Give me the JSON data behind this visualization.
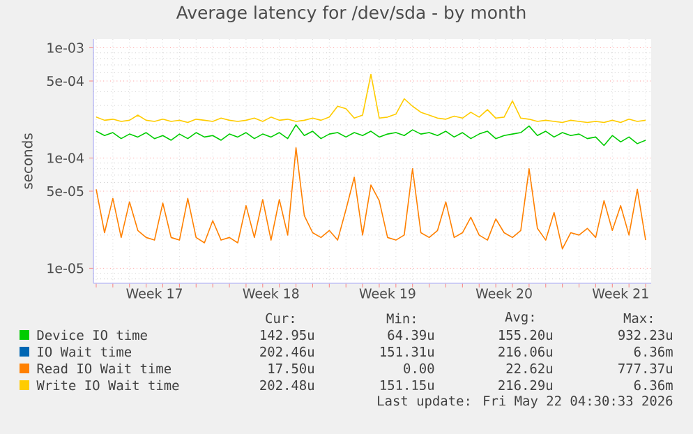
{
  "chart_data": {
    "type": "line",
    "title": "Average latency for /dev/sda - by month",
    "ylabel": "seconds",
    "log": "y",
    "grid": true,
    "legend": "bottom",
    "marker": "none",
    "line_style": "solid",
    "xlim": [
      "2026-04-19T20:00",
      "2026-05-23T08:00"
    ],
    "xticks": [
      {
        "value": "2026-04-20",
        "label": null
      },
      {
        "value": "2026-04-21",
        "label": null
      },
      {
        "value": "2026-04-22",
        "label": null
      },
      {
        "value": "2026-04-23",
        "label": null
      },
      {
        "value": "2026-04-24",
        "label": null
      },
      {
        "value": "2026-04-25",
        "label": null
      },
      {
        "value": "2026-04-26",
        "label": null
      },
      {
        "value": "2026-04-27",
        "label": null
      },
      {
        "value": "2026-04-28",
        "label": null
      },
      {
        "value": "2026-04-29",
        "label": null
      },
      {
        "value": "2026-04-30",
        "label": null
      },
      {
        "value": "2026-05-01",
        "label": null
      },
      {
        "value": "2026-05-02",
        "label": null
      },
      {
        "value": "2026-05-03",
        "label": null
      },
      {
        "value": "2026-05-04",
        "label": null
      },
      {
        "value": "2026-05-05",
        "label": null
      },
      {
        "value": "2026-05-06",
        "label": null
      },
      {
        "value": "2026-05-07",
        "label": null
      },
      {
        "value": "2026-05-08",
        "label": null
      },
      {
        "value": "2026-05-09",
        "label": null
      },
      {
        "value": "2026-05-10",
        "label": null
      },
      {
        "value": "2026-05-11",
        "label": null
      },
      {
        "value": "2026-05-12",
        "label": null
      },
      {
        "value": "2026-05-13",
        "label": null
      },
      {
        "value": "2026-05-14",
        "label": null
      },
      {
        "value": "2026-05-15",
        "label": null
      },
      {
        "value": "2026-05-16",
        "label": null
      },
      {
        "value": "2026-05-17",
        "label": null
      },
      {
        "value": "2026-05-18",
        "label": null
      },
      {
        "value": "2026-05-19",
        "label": null
      },
      {
        "value": "2026-05-20",
        "label": null
      },
      {
        "value": "2026-05-21",
        "label": null
      },
      {
        "value": "2026-05-22",
        "label": null
      },
      {
        "value": "2026-05-23",
        "label": null
      },
      {
        "value": "2026-04-23T12:00",
        "label": "Week 17"
      },
      {
        "value": "2026-04-30T12:00",
        "label": "Week 18"
      },
      {
        "value": "2026-05-07T12:00",
        "label": "Week 19"
      },
      {
        "value": "2026-05-14T12:00",
        "label": "Week 20"
      },
      {
        "value": "2026-05-21T12:00",
        "label": "Week 21"
      }
    ],
    "ylim": [
      7.3e-06,
      0.0012
    ],
    "yticks": [
      {
        "value": 8e-06,
        "label": null
      },
      {
        "value": 9e-06,
        "label": null
      },
      {
        "value": 1e-05,
        "label": "1e-05"
      },
      {
        "value": 2e-05,
        "label": null
      },
      {
        "value": 3e-05,
        "label": null
      },
      {
        "value": 4e-05,
        "label": null
      },
      {
        "value": 5e-05,
        "label": "5e-05"
      },
      {
        "value": 6e-05,
        "label": null
      },
      {
        "value": 7e-05,
        "label": null
      },
      {
        "value": 8e-05,
        "label": null
      },
      {
        "value": 9e-05,
        "label": null
      },
      {
        "value": 0.0001,
        "label": "1e-04"
      },
      {
        "value": 0.0002,
        "label": null
      },
      {
        "value": 0.0003,
        "label": null
      },
      {
        "value": 0.0004,
        "label": null
      },
      {
        "value": 0.0005,
        "label": "5e-04"
      },
      {
        "value": 0.0006,
        "label": null
      },
      {
        "value": 0.0007,
        "label": null
      },
      {
        "value": 0.0008,
        "label": null
      },
      {
        "value": 0.0009,
        "label": null
      },
      {
        "value": 0.001,
        "label": "1e-03"
      }
    ],
    "x": [
      "2026-04-20T00:00",
      "2026-04-20T12:00",
      "2026-04-21T00:00",
      "2026-04-21T12:00",
      "2026-04-22T00:00",
      "2026-04-22T12:00",
      "2026-04-23T00:00",
      "2026-04-23T12:00",
      "2026-04-24T00:00",
      "2026-04-24T12:00",
      "2026-04-25T00:00",
      "2026-04-25T12:00",
      "2026-04-26T00:00",
      "2026-04-26T12:00",
      "2026-04-27T00:00",
      "2026-04-27T12:00",
      "2026-04-28T00:00",
      "2026-04-28T12:00",
      "2026-04-29T00:00",
      "2026-04-29T12:00",
      "2026-04-30T00:00",
      "2026-04-30T12:00",
      "2026-05-01T00:00",
      "2026-05-01T12:00",
      "2026-05-02T00:00",
      "2026-05-02T12:00",
      "2026-05-03T00:00",
      "2026-05-03T12:00",
      "2026-05-04T00:00",
      "2026-05-04T12:00",
      "2026-05-05T00:00",
      "2026-05-05T12:00",
      "2026-05-06T00:00",
      "2026-05-06T12:00",
      "2026-05-07T00:00",
      "2026-05-07T12:00",
      "2026-05-08T00:00",
      "2026-05-08T12:00",
      "2026-05-09T00:00",
      "2026-05-09T12:00",
      "2026-05-10T00:00",
      "2026-05-10T12:00",
      "2026-05-11T00:00",
      "2026-05-11T12:00",
      "2026-05-12T00:00",
      "2026-05-12T12:00",
      "2026-05-13T00:00",
      "2026-05-13T12:00",
      "2026-05-14T00:00",
      "2026-05-14T12:00",
      "2026-05-15T00:00",
      "2026-05-15T12:00",
      "2026-05-16T00:00",
      "2026-05-16T12:00",
      "2026-05-17T00:00",
      "2026-05-17T12:00",
      "2026-05-18T00:00",
      "2026-05-18T12:00",
      "2026-05-19T00:00",
      "2026-05-19T12:00",
      "2026-05-20T00:00",
      "2026-05-20T12:00",
      "2026-05-21T00:00",
      "2026-05-21T12:00",
      "2026-05-22T00:00",
      "2026-05-22T12:00",
      "2026-05-23T00:00"
    ],
    "series": [
      {
        "name": "Device IO time",
        "color": "#00cc00",
        "values": [
          0.000175,
          0.00016,
          0.00017,
          0.00015,
          0.000165,
          0.000155,
          0.00017,
          0.00015,
          0.00016,
          0.000145,
          0.000165,
          0.00015,
          0.00017,
          0.000155,
          0.00016,
          0.000145,
          0.000165,
          0.000155,
          0.00017,
          0.00015,
          0.000165,
          0.000155,
          0.00017,
          0.00015,
          0.0002,
          0.00016,
          0.000175,
          0.00015,
          0.000165,
          0.00017,
          0.000155,
          0.00017,
          0.00016,
          0.000175,
          0.000155,
          0.000165,
          0.00017,
          0.00016,
          0.00018,
          0.000165,
          0.00017,
          0.00016,
          0.000175,
          0.000155,
          0.00017,
          0.00015,
          0.000165,
          0.000175,
          0.00015,
          0.00016,
          0.000165,
          0.00017,
          0.000195,
          0.00016,
          0.000175,
          0.000155,
          0.00017,
          0.00016,
          0.000165,
          0.00015,
          0.000155,
          0.00013,
          0.00016,
          0.00014,
          0.000155,
          0.000135,
          0.000145
        ]
      },
      {
        "name": "IO Wait time",
        "color": "#0066b3",
        "values": [
          null,
          null,
          null,
          null,
          null,
          null,
          null,
          null,
          null,
          null,
          null,
          null,
          null,
          null,
          null,
          null,
          null,
          null,
          null,
          null,
          null,
          null,
          null,
          null,
          null,
          null,
          null,
          null,
          null,
          null,
          null,
          null,
          null,
          null,
          null,
          null,
          null,
          null,
          null,
          null,
          null,
          null,
          null,
          null,
          null,
          null,
          null,
          null,
          null,
          null,
          null,
          null,
          null,
          null,
          null,
          null,
          null,
          null,
          null,
          null,
          null,
          null,
          null,
          null,
          null,
          null,
          null
        ]
      },
      {
        "name": "Read IO Wait time",
        "color": "#ff8000",
        "values": [
          5.2e-05,
          2.1e-05,
          4.3e-05,
          1.9e-05,
          4e-05,
          2.2e-05,
          1.9e-05,
          1.8e-05,
          3.9e-05,
          1.9e-05,
          1.8e-05,
          4.3e-05,
          1.9e-05,
          1.7e-05,
          2.7e-05,
          1.8e-05,
          1.9e-05,
          1.7e-05,
          3.7e-05,
          1.9e-05,
          4.2e-05,
          1.8e-05,
          4.2e-05,
          2e-05,
          0.000124,
          3e-05,
          2.1e-05,
          1.9e-05,
          2.2e-05,
          1.8e-05,
          3.4e-05,
          6.7e-05,
          2e-05,
          5.7e-05,
          4.1e-05,
          1.9e-05,
          1.8e-05,
          2e-05,
          8e-05,
          2.1e-05,
          1.9e-05,
          2.2e-05,
          4e-05,
          1.9e-05,
          2.1e-05,
          2.9e-05,
          2e-05,
          1.8e-05,
          2.8e-05,
          2.1e-05,
          1.9e-05,
          2.2e-05,
          8e-05,
          2.3e-05,
          1.8e-05,
          3.2e-05,
          1.5e-05,
          2.1e-05,
          2e-05,
          2.3e-05,
          1.9e-05,
          4.1e-05,
          2.2e-05,
          3.7e-05,
          2e-05,
          5.2e-05,
          1.8e-05
        ]
      },
      {
        "name": "Write IO Wait time",
        "color": "#ffcc00",
        "values": [
          0.000235,
          0.00022,
          0.000225,
          0.000215,
          0.00022,
          0.000245,
          0.00022,
          0.000215,
          0.000225,
          0.000215,
          0.00022,
          0.00021,
          0.000225,
          0.00022,
          0.000215,
          0.00023,
          0.00022,
          0.000215,
          0.00022,
          0.00023,
          0.000215,
          0.000235,
          0.00022,
          0.000225,
          0.000215,
          0.00022,
          0.00023,
          0.00022,
          0.000235,
          0.000295,
          0.00028,
          0.00023,
          0.000245,
          0.000575,
          0.00023,
          0.000235,
          0.00025,
          0.000345,
          0.000295,
          0.00026,
          0.000245,
          0.00023,
          0.000225,
          0.00024,
          0.00023,
          0.00026,
          0.000235,
          0.000275,
          0.00023,
          0.000235,
          0.00033,
          0.00023,
          0.000225,
          0.000215,
          0.00022,
          0.000215,
          0.00021,
          0.00022,
          0.000215,
          0.00021,
          0.000215,
          0.00021,
          0.00022,
          0.00021,
          0.000225,
          0.000215,
          0.00022
        ]
      }
    ],
    "annotations": [
      "Cur:",
      "Min:",
      "Avg:",
      "Max:",
      "142.95u",
      "64.39u",
      "155.20u",
      "932.23u",
      "202.46u",
      "151.31u",
      "216.06u",
      "6.36m",
      "17.50u",
      "0.00",
      "22.62u",
      "777.37u",
      "202.48u",
      "151.15u",
      "216.29u",
      "6.36m",
      "Last update: Fri May 22 04:30:33 2026"
    ]
  }
}
